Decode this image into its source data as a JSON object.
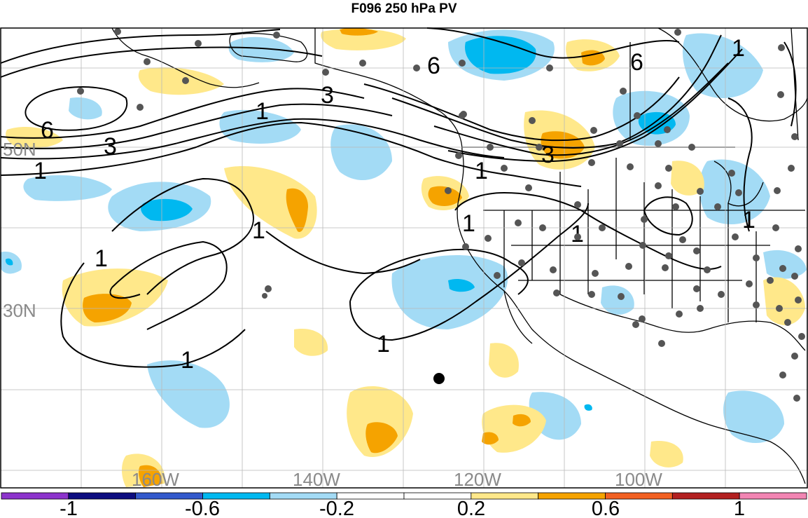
{
  "title": "F096 250 hPa PV",
  "map": {
    "lat_labels": [
      "50N",
      "30N"
    ],
    "lon_labels": [
      "160W",
      "140W",
      "120W",
      "100W"
    ],
    "contour_labels": [
      "6",
      "3",
      "1",
      "3",
      "6",
      "1",
      "6",
      "3",
      "1",
      "1",
      "1",
      "1",
      "1",
      "1",
      "1",
      "1"
    ]
  },
  "colorbar": {
    "colors": [
      "#8c33cc",
      "#0d0d80",
      "#3359cc",
      "#00b8f0",
      "#a3dbf5",
      "#ffffff",
      "#ffffff",
      "#ffe88a",
      "#f5a300",
      "#f26122",
      "#b32020",
      "#f285b3"
    ],
    "tick_labels": [
      "-1",
      "-0.6",
      "-0.2",
      "0.2",
      "0.6",
      "1"
    ]
  },
  "legend_colors": {
    "negative_light": "#a3dbf5",
    "negative_mid": "#00b8f0",
    "positive_light": "#ffe88a",
    "positive_mid": "#f5a300"
  }
}
